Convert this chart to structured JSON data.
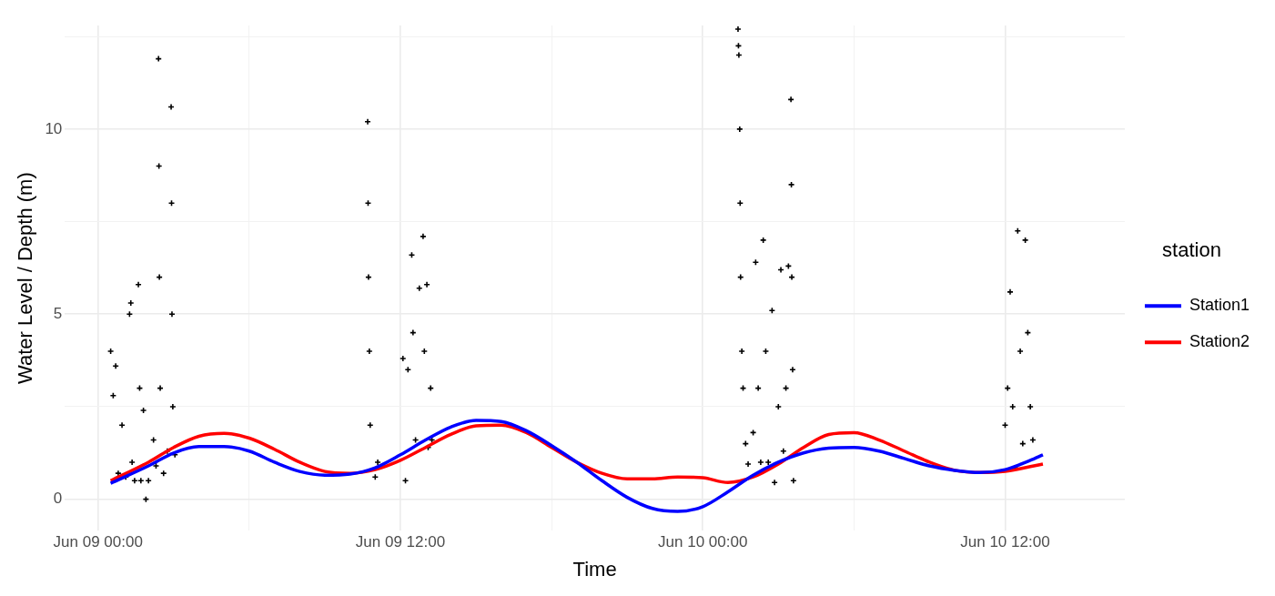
{
  "chart_data": {
    "type": "line",
    "xlabel": "Time",
    "ylabel": "Water Level / Depth (m)",
    "legend_title": "station",
    "legend": "right",
    "grid": true,
    "marker": "none",
    "line_style": "solid",
    "xlim": [
      "--06-08T22:41",
      "--06-10T16:45"
    ],
    "ylim": [
      -0.85,
      12.8
    ],
    "xticks": [
      {
        "value": "--06-09T00:00",
        "label": "Jun 09 00:00"
      },
      {
        "value": "--06-09T06:00",
        "label": null
      },
      {
        "value": "--06-09T12:00",
        "label": "Jun 09 12:00"
      },
      {
        "value": "--06-09T18:00",
        "label": null
      },
      {
        "value": "--06-10T00:00",
        "label": "Jun 10 00:00"
      },
      {
        "value": "--06-10T06:00",
        "label": null
      },
      {
        "value": "--06-10T12:00",
        "label": "Jun 10 12:00"
      }
    ],
    "yticks": [
      0,
      {
        "value": 2.5,
        "label": null
      },
      5,
      {
        "value": 7.5,
        "label": null
      },
      10,
      {
        "value": 12.5,
        "label": null
      }
    ],
    "series": [
      {
        "type": "scatter",
        "marker": "cross",
        "color": "#000000",
        "x": [
          "--06-09T00:30",
          "--06-09T00:36",
          "--06-09T00:42",
          "--06-09T00:48",
          "--06-09T00:57",
          "--06-09T01:06",
          "--06-09T01:15",
          "--06-09T01:18",
          "--06-09T01:21",
          "--06-09T01:27",
          "--06-09T01:36",
          "--06-09T01:39",
          "--06-09T01:42",
          "--06-09T01:48",
          "--06-09T01:54",
          "--06-09T02:00",
          "--06-09T02:12",
          "--06-09T02:18",
          "--06-09T02:24",
          "--06-09T02:25",
          "--06-09T02:26",
          "--06-09T02:28",
          "--06-09T02:36",
          "--06-09T02:45",
          "--06-09T02:54",
          "--06-09T02:55",
          "--06-09T02:56",
          "--06-09T02:58",
          "--06-09T03:03",
          "--06-09T10:42",
          "--06-09T10:43",
          "--06-09T10:44",
          "--06-09T10:46",
          "--06-09T10:48",
          "--06-09T11:00",
          "--06-09T11:06",
          "--06-09T12:06",
          "--06-09T12:12",
          "--06-09T12:18",
          "--06-09T12:27",
          "--06-09T12:30",
          "--06-09T12:36",
          "--06-09T12:45",
          "--06-09T12:54",
          "--06-09T12:57",
          "--06-09T13:03",
          "--06-09T13:06",
          "--06-09T13:12",
          "--06-09T13:15",
          "--06-10T01:24",
          "--06-10T01:25",
          "--06-10T01:26",
          "--06-10T01:28",
          "--06-10T01:29",
          "--06-10T01:30",
          "--06-10T01:33",
          "--06-10T01:36",
          "--06-10T01:42",
          "--06-10T01:48",
          "--06-10T02:00",
          "--06-10T02:06",
          "--06-10T02:12",
          "--06-10T02:18",
          "--06-10T02:24",
          "--06-10T02:30",
          "--06-10T02:36",
          "--06-10T02:45",
          "--06-10T02:51",
          "--06-10T03:00",
          "--06-10T03:06",
          "--06-10T03:12",
          "--06-10T03:18",
          "--06-10T03:24",
          "--06-10T03:30",
          "--06-10T03:31",
          "--06-10T03:32",
          "--06-10T03:34",
          "--06-10T03:36",
          "--06-10T12:00",
          "--06-10T12:06",
          "--06-10T12:12",
          "--06-10T12:18",
          "--06-10T12:24",
          "--06-10T12:30",
          "--06-10T12:36",
          "--06-10T12:42",
          "--06-10T12:48",
          "--06-10T12:54",
          "--06-10T13:00",
          "--06-10T13:06"
        ],
        "values": [
          4.0,
          2.8,
          3.6,
          0.7,
          2.0,
          0.6,
          5.0,
          5.3,
          1.0,
          0.5,
          5.8,
          3.0,
          0.5,
          2.4,
          0.0,
          0.5,
          1.6,
          0.9,
          11.9,
          9,
          6,
          3,
          0.7,
          1.3,
          10.6,
          8,
          5,
          2.5,
          1.2,
          10.2,
          8,
          6,
          4,
          2,
          0.6,
          1.0,
          3.8,
          0.5,
          3.5,
          6.6,
          4.5,
          1.6,
          5.7,
          7.1,
          4.0,
          5.8,
          1.4,
          3.0,
          1.6,
          12.7,
          12.25,
          12.0,
          10,
          8,
          6,
          4,
          3.0,
          1.5,
          0.95,
          1.8,
          6.4,
          3,
          1.0,
          7.0,
          4,
          1.0,
          5.1,
          0.45,
          2.5,
          6.2,
          1.3,
          3,
          6.3,
          10.8,
          8.5,
          6,
          3.5,
          0.5,
          2.0,
          3.0,
          5.6,
          2.5,
          0.85,
          7.25,
          4,
          1.5,
          7.0,
          4.5,
          2.5,
          1.6
        ]
      },
      {
        "name": "Station1",
        "color": "#0000ff",
        "x": [
          "--06-09T00:30",
          "--06-09T02:00",
          "--06-09T03:00",
          "--06-09T04:00",
          "--06-09T05:00",
          "--06-09T06:00",
          "--06-09T07:00",
          "--06-09T08:00",
          "--06-09T09:00",
          "--06-09T10:00",
          "--06-09T11:00",
          "--06-09T12:00",
          "--06-09T13:00",
          "--06-09T14:00",
          "--06-09T15:00",
          "--06-09T16:00",
          "--06-09T17:00",
          "--06-09T18:00",
          "--06-09T19:00",
          "--06-09T20:00",
          "--06-09T21:00",
          "--06-09T22:00",
          "--06-09T23:00",
          "--06-10T00:00",
          "--06-10T01:00",
          "--06-10T02:00",
          "--06-10T03:00",
          "--06-10T04:00",
          "--06-10T05:00",
          "--06-10T06:00",
          "--06-10T07:00",
          "--06-10T08:00",
          "--06-10T09:00",
          "--06-10T10:00",
          "--06-10T11:00",
          "--06-10T12:00",
          "--06-10T13:00",
          "--06-10T13:30"
        ],
        "values": [
          0.43,
          0.9,
          1.25,
          1.42,
          1.42,
          1.3,
          1.0,
          0.75,
          0.65,
          0.68,
          0.85,
          1.2,
          1.6,
          1.95,
          2.13,
          2.1,
          1.85,
          1.45,
          1.0,
          0.5,
          0.05,
          -0.25,
          -0.33,
          -0.2,
          0.2,
          0.65,
          1.0,
          1.25,
          1.38,
          1.4,
          1.3,
          1.1,
          0.9,
          0.78,
          0.72,
          0.8,
          1.05,
          1.2
        ]
      },
      {
        "name": "Station2",
        "color": "#ff0000",
        "x": [
          "--06-09T00:30",
          "--06-09T02:00",
          "--06-09T03:00",
          "--06-09T04:00",
          "--06-09T05:00",
          "--06-09T06:00",
          "--06-09T07:00",
          "--06-09T08:00",
          "--06-09T09:00",
          "--06-09T10:00",
          "--06-09T11:00",
          "--06-09T12:00",
          "--06-09T13:00",
          "--06-09T14:00",
          "--06-09T15:00",
          "--06-09T16:00",
          "--06-09T17:00",
          "--06-09T18:00",
          "--06-09T19:00",
          "--06-09T20:00",
          "--06-09T21:00",
          "--06-09T22:00",
          "--06-09T23:00",
          "--06-10T00:00",
          "--06-10T01:00",
          "--06-10T02:00",
          "--06-10T03:00",
          "--06-10T04:00",
          "--06-10T05:00",
          "--06-10T06:00",
          "--06-10T07:00",
          "--06-10T08:00",
          "--06-10T09:00",
          "--06-10T10:00",
          "--06-10T11:00",
          "--06-10T12:00",
          "--06-10T13:00",
          "--06-10T13:30"
        ],
        "values": [
          0.5,
          1.0,
          1.4,
          1.7,
          1.78,
          1.65,
          1.35,
          1.0,
          0.75,
          0.7,
          0.8,
          1.05,
          1.4,
          1.75,
          1.98,
          2.0,
          1.8,
          1.4,
          1.0,
          0.7,
          0.55,
          0.55,
          0.6,
          0.58,
          0.45,
          0.6,
          0.95,
          1.4,
          1.75,
          1.8,
          1.6,
          1.3,
          1.0,
          0.78,
          0.72,
          0.75,
          0.88,
          0.95
        ]
      }
    ]
  }
}
